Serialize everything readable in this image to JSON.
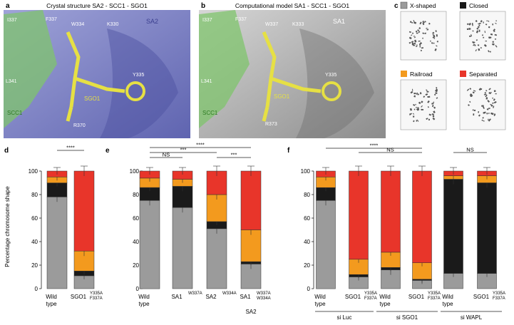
{
  "panel_letters": {
    "a": "a",
    "b": "b",
    "c": "c",
    "d": "d",
    "e": "e",
    "f": "f"
  },
  "panel_a": {
    "title": "Crystal structure SA2 - SCC1 - SGO1",
    "labels": {
      "i337": "I337",
      "f337": "F337",
      "w334": "W334",
      "k330": "K330",
      "sa2": "SA2",
      "l341": "L341",
      "y335": "Y335",
      "sgo1": "SGO1",
      "scc1": "SCC1",
      "r370": "R370"
    },
    "colors": {
      "protein": "#7a7fc4",
      "scc1": "#6abf5a",
      "ligand": "#e6e044"
    }
  },
  "panel_b": {
    "title": "Computational model SA1 - SCC1 - SGO1",
    "labels": {
      "i337": "I337",
      "f337": "F337",
      "w337": "W337",
      "k333": "K333",
      "sa1": "SA1",
      "l341": "L341",
      "y335": "Y335",
      "sgo1": "SGO1",
      "scc1": "SCC1",
      "r373": "R373"
    },
    "colors": {
      "protein": "#b5b5b5",
      "scc1": "#6abf5a",
      "ligand": "#e6e044"
    }
  },
  "panel_c": {
    "legend": [
      {
        "label": "X-shaped",
        "color": "#9b9b9b"
      },
      {
        "label": "Closed",
        "color": "#1a1a1a"
      },
      {
        "label": "Railroad",
        "color": "#f39a1e"
      },
      {
        "label": "Separated",
        "color": "#e8352a"
      }
    ]
  },
  "chart_data": [
    {
      "type": "bar",
      "panel": "d",
      "ylabel": "Percentage chromosome shape",
      "ylim": [
        0,
        100
      ],
      "yticks": [
        "0",
        "20",
        "40",
        "60",
        "80",
        "100"
      ],
      "categories": [
        {
          "main": "Wild type",
          "mut": ""
        },
        {
          "main": "SGO1",
          "mut": "Y335A F337A"
        }
      ],
      "series": [
        {
          "name": "X-shaped",
          "values": [
            78,
            11
          ]
        },
        {
          "name": "Closed",
          "values": [
            12,
            4
          ]
        },
        {
          "name": "Railroad",
          "values": [
            5,
            17
          ]
        },
        {
          "name": "Separated",
          "values": [
            5,
            68
          ]
        }
      ],
      "significance": [
        {
          "text": "****"
        }
      ]
    },
    {
      "type": "bar",
      "panel": "e",
      "ylim": [
        0,
        100
      ],
      "yticks": [
        "0",
        "20",
        "40",
        "60",
        "80",
        "100"
      ],
      "categories": [
        {
          "main": "Wild type",
          "mut": ""
        },
        {
          "main": "SA1",
          "mut": "W337A"
        },
        {
          "main": "SA2",
          "mut": "W334A"
        },
        {
          "main": "SA1",
          "mut": "W337A W334A",
          "extra": "SA2"
        }
      ],
      "series": [
        {
          "name": "X-shaped",
          "values": [
            75,
            69,
            51,
            21
          ]
        },
        {
          "name": "Closed",
          "values": [
            11,
            18,
            6,
            2
          ]
        },
        {
          "name": "Railroad",
          "values": [
            8,
            6,
            23,
            27
          ]
        },
        {
          "name": "Separated",
          "values": [
            6,
            7,
            20,
            50
          ]
        }
      ],
      "significance": [
        {
          "text": "****"
        },
        {
          "text": "***"
        },
        {
          "text": "NS"
        },
        {
          "text": "***"
        }
      ]
    },
    {
      "type": "bar",
      "panel": "f",
      "ylim": [
        0,
        100
      ],
      "yticks": [
        "0",
        "20",
        "40",
        "60",
        "80",
        "100"
      ],
      "categories": [
        {
          "main": "Wild type",
          "mut": ""
        },
        {
          "main": "SGO1",
          "mut": "Y335A F337A"
        },
        {
          "main": "Wild type",
          "mut": ""
        },
        {
          "main": "SGO1",
          "mut": "Y335A F337A"
        },
        {
          "main": "Wild type",
          "mut": ""
        },
        {
          "main": "SGO1",
          "mut": "Y335A F337A"
        }
      ],
      "groups": [
        "si Luc",
        "si SGO1",
        "si WAPL"
      ],
      "series": [
        {
          "name": "X-shaped",
          "values": [
            75,
            10,
            16,
            7,
            13,
            13
          ]
        },
        {
          "name": "Closed",
          "values": [
            11,
            2,
            2,
            1,
            80,
            77
          ]
        },
        {
          "name": "Railroad",
          "values": [
            9,
            13,
            13,
            14,
            3,
            6
          ]
        },
        {
          "name": "Separated",
          "values": [
            5,
            75,
            69,
            78,
            4,
            4
          ]
        }
      ],
      "significance": [
        {
          "text": "****"
        },
        {
          "text": "NS"
        },
        {
          "text": "NS"
        }
      ]
    }
  ]
}
